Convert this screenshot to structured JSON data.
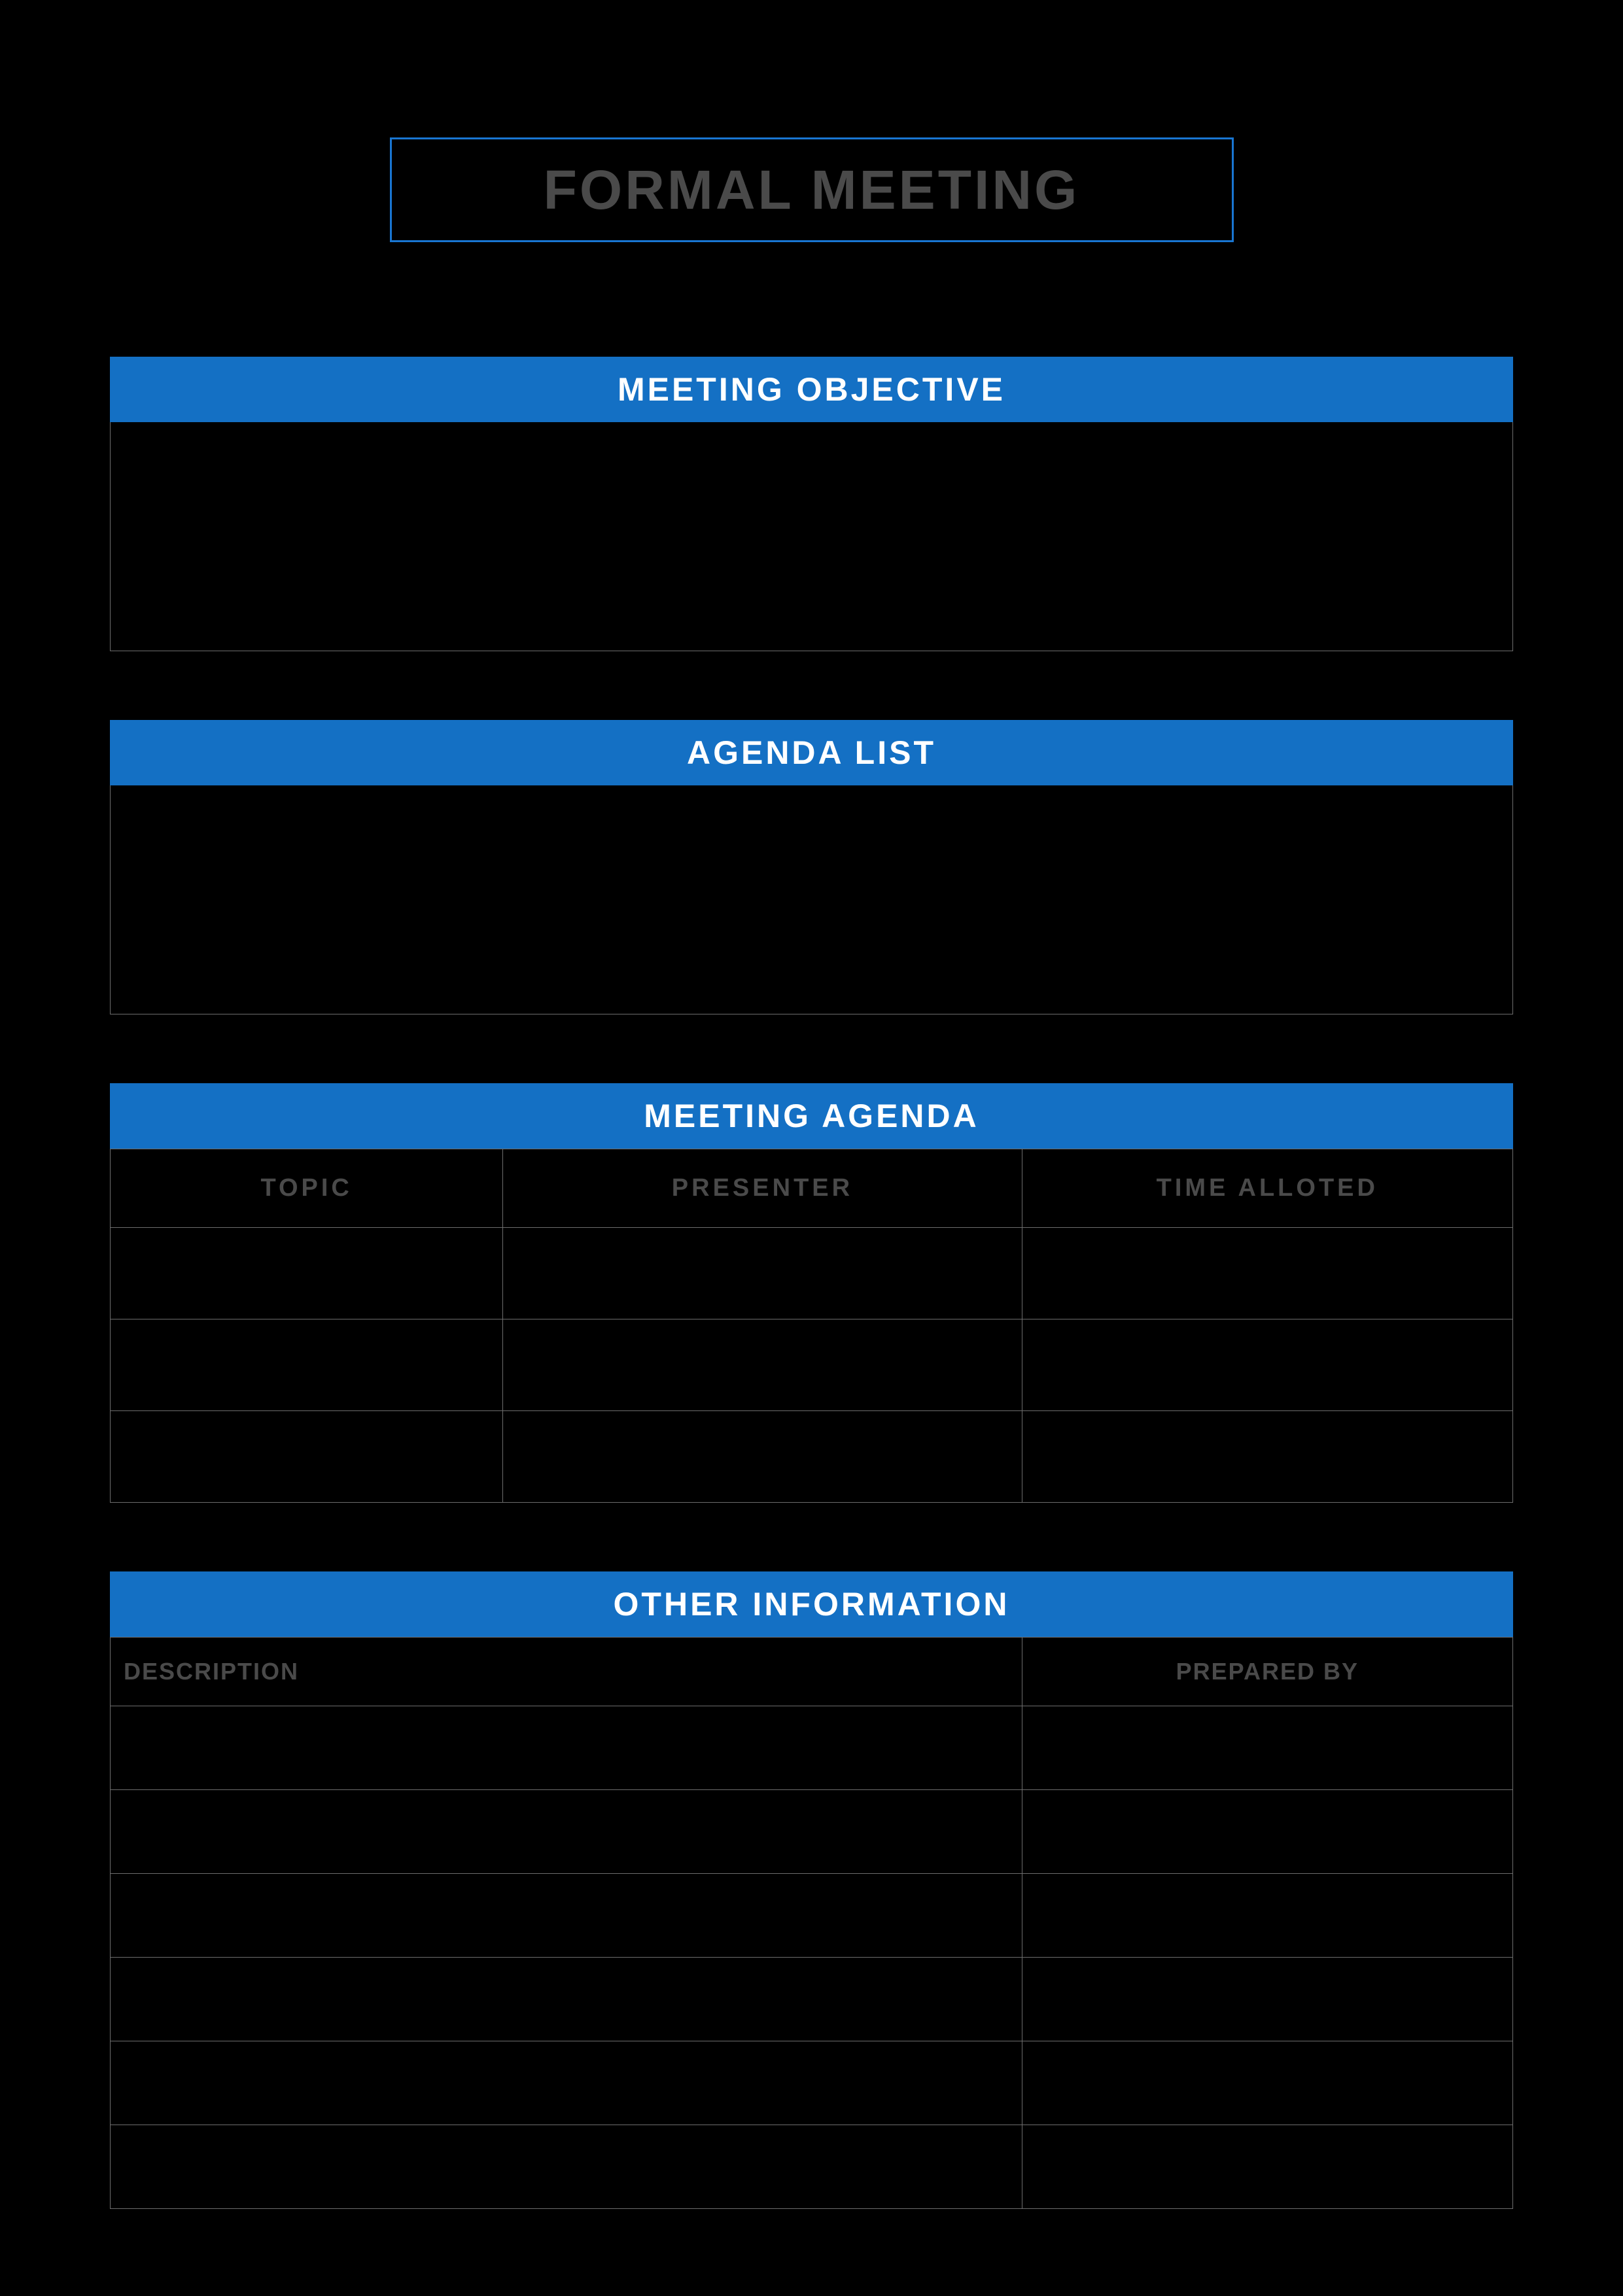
{
  "title": "FORMAL MEETING",
  "colors": {
    "background": "#000000",
    "header_bg": "#1470c4",
    "title_border": "#1976d2",
    "cell_border": "#6d6d6d",
    "header_text": "#ffffff",
    "subheader_text": "#4a4a4a",
    "title_text": "#4a4a4a"
  },
  "sections": {
    "objective": {
      "header": "MEETING OBJECTIVE",
      "body": ""
    },
    "agenda_list": {
      "header": "AGENDA LIST",
      "body": ""
    },
    "meeting_agenda": {
      "header": "MEETING AGENDA",
      "columns": [
        "TOPIC",
        "PRESENTER",
        "TIME ALLOTED"
      ],
      "rows": [
        [
          "",
          "",
          ""
        ],
        [
          "",
          "",
          ""
        ],
        [
          "",
          "",
          ""
        ]
      ]
    },
    "other_info": {
      "header": "OTHER INFORMATION",
      "columns": [
        "DESCRIPTION",
        "PREPARED BY"
      ],
      "rows": [
        [
          "",
          ""
        ],
        [
          "",
          ""
        ],
        [
          "",
          ""
        ],
        [
          "",
          ""
        ],
        [
          "",
          ""
        ],
        [
          "",
          ""
        ]
      ]
    }
  }
}
